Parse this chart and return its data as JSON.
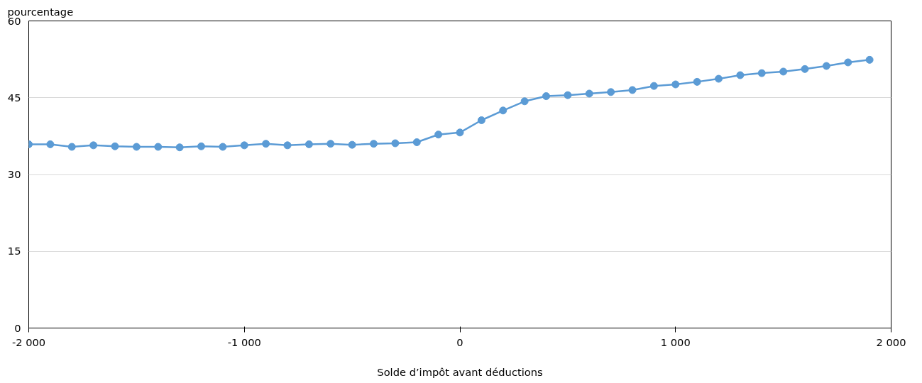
{
  "chart_data": {
    "type": "line",
    "ylabel": "pourcentage",
    "xlabel": "Solde d’impôt avant déductions",
    "x": [
      -2000,
      -1900,
      -1800,
      -1700,
      -1600,
      -1500,
      -1400,
      -1300,
      -1200,
      -1100,
      -1000,
      -900,
      -800,
      -700,
      -600,
      -500,
      -400,
      -300,
      -200,
      -100,
      0,
      100,
      200,
      300,
      400,
      500,
      600,
      700,
      800,
      900,
      1000,
      1100,
      1200,
      1300,
      1400,
      1500,
      1600,
      1700,
      1800,
      1900
    ],
    "series": [
      {
        "color": "#5b9bd5",
        "values": [
          35.9,
          35.9,
          35.4,
          35.7,
          35.5,
          35.4,
          35.4,
          35.3,
          35.5,
          35.4,
          35.7,
          36.0,
          35.7,
          35.9,
          36.0,
          35.8,
          36.0,
          36.1,
          36.3,
          37.8,
          38.2,
          40.6,
          42.5,
          44.3,
          45.3,
          45.5,
          45.8,
          46.1,
          46.5,
          47.3,
          47.6,
          48.1,
          48.7,
          49.4,
          49.8,
          50.1,
          50.6,
          51.2,
          51.9,
          52.4
        ]
      }
    ],
    "xlim": [
      -2000,
      2000
    ],
    "ylim": [
      0,
      60
    ],
    "xticks": [
      {
        "value": -2000,
        "label": "-2 000"
      },
      {
        "value": -1000,
        "label": "-1 000"
      },
      0,
      {
        "value": 1000,
        "label": "1 000"
      },
      {
        "value": 2000,
        "label": "2 000"
      }
    ],
    "yticks": [
      0,
      15,
      30,
      45,
      60
    ],
    "grid": "y",
    "marker": "circle",
    "line_style": "solid"
  }
}
